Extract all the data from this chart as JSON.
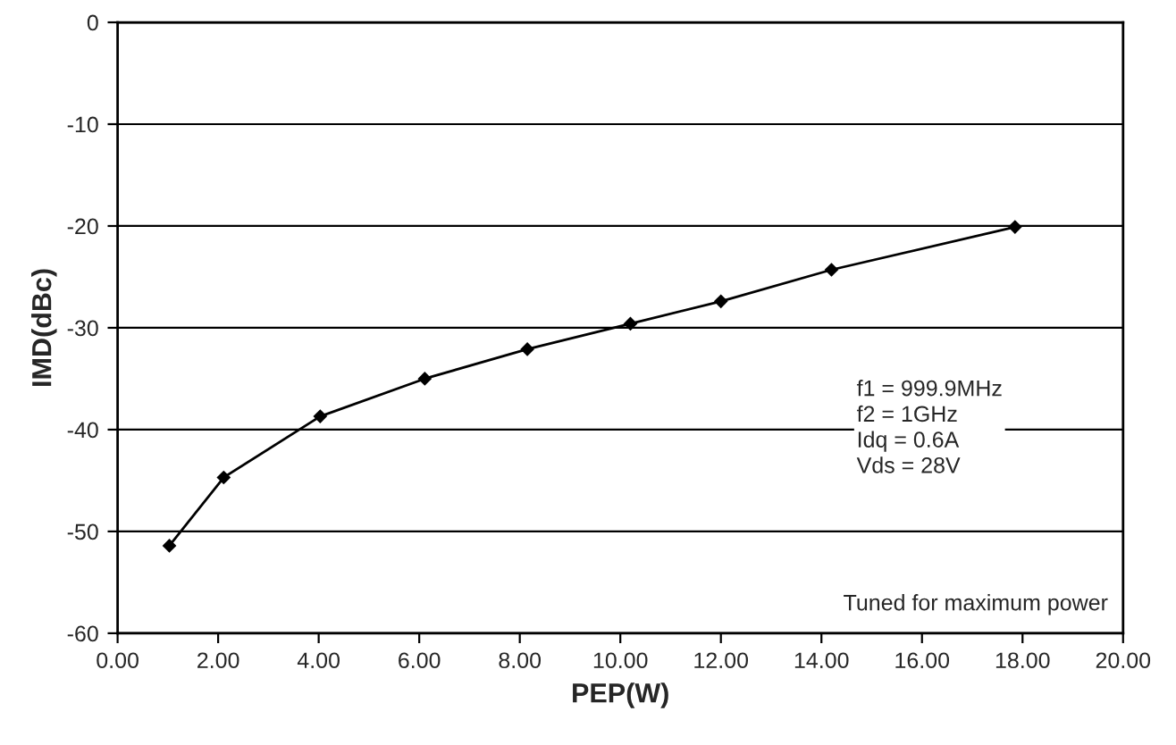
{
  "chart_data": {
    "type": "line",
    "xlabel": "PEP(W)",
    "ylabel": "IMD(dBc)",
    "x": [
      1.03,
      2.11,
      4.03,
      6.11,
      8.15,
      10.2,
      12.0,
      14.2,
      17.85
    ],
    "series": [
      {
        "color": "#000000",
        "values": [
          -51.4,
          -44.7,
          -38.7,
          -35.0,
          -32.1,
          -29.6,
          -27.4,
          -24.3,
          -20.1
        ]
      }
    ],
    "xlim": [
      0,
      20
    ],
    "xticks": [
      {
        "value": 0,
        "label": "0.00"
      },
      {
        "value": 2,
        "label": "2.00"
      },
      {
        "value": 4,
        "label": "4.00"
      },
      {
        "value": 6,
        "label": "6.00"
      },
      {
        "value": 8,
        "label": "8.00"
      },
      {
        "value": 10,
        "label": "10.00"
      },
      {
        "value": 12,
        "label": "12.00"
      },
      {
        "value": 14,
        "label": "14.00"
      },
      {
        "value": 16,
        "label": "16.00"
      },
      {
        "value": 18,
        "label": "18.00"
      },
      {
        "value": 20,
        "label": "20.00"
      }
    ],
    "ylim": [
      -60,
      0
    ],
    "yticks": [
      -60,
      -50,
      -40,
      -30,
      -20,
      -10,
      0
    ],
    "grid": "y",
    "marker": "diamond",
    "line_style": "solid",
    "annotations": [
      "f1 = 999.9MHz\nf2 = 1GHz\nIdq = 0.6A\nVds = 28V",
      "Tuned for maximum power"
    ]
  }
}
